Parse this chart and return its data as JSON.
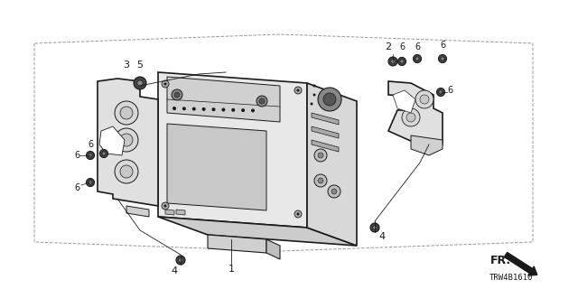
{
  "bg_color": "#ffffff",
  "lc": "#1a1a1a",
  "title_code": "TRW4B1610",
  "fr_label": "FR.",
  "figsize": [
    6.4,
    3.2
  ],
  "dpi": 100
}
